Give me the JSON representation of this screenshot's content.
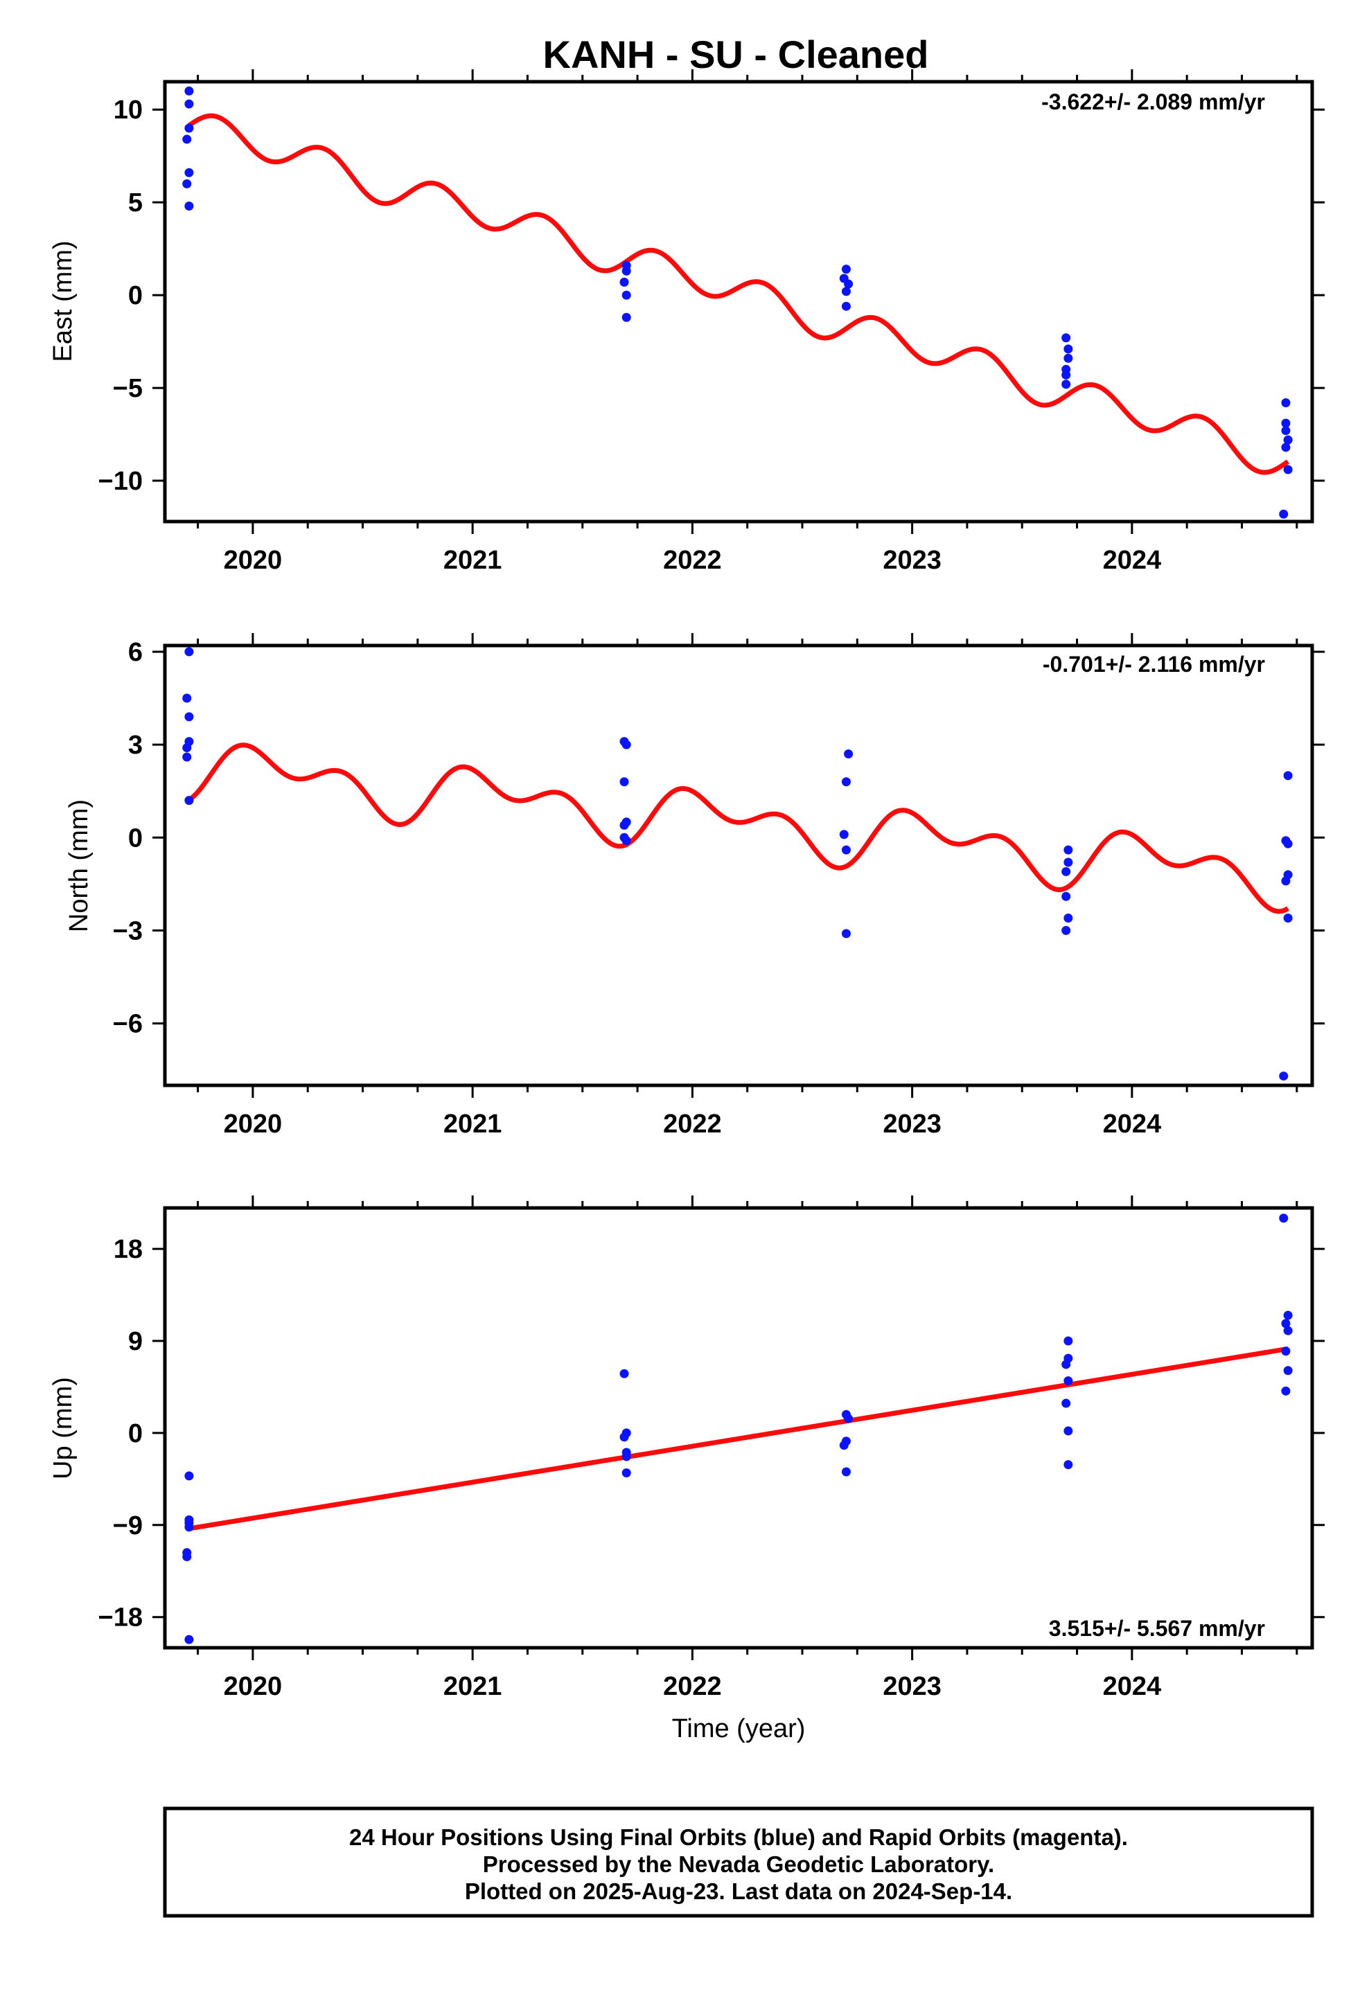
{
  "title": "KANH  - SU - Cleaned",
  "colors": {
    "data_points": "#0a14ff",
    "model_line": "#ff0a0a",
    "frame": "#000000"
  },
  "xlabel": "Time (year)",
  "footer": {
    "lines": [
      "24 Hour Positions Using Final Orbits (blue) and Rapid Orbits (magenta).",
      "Processed by the Nevada Geodetic Laboratory.",
      "Plotted on 2025-Aug-23. Last data on 2024-Sep-14."
    ]
  },
  "chart_data": [
    {
      "type": "scatter",
      "title": "",
      "ylabel": "East (mm)",
      "xlabel": "",
      "xlim": [
        2019.6,
        2024.82
      ],
      "ylim": [
        -12.2,
        11.5
      ],
      "xticks": [
        2020,
        2021,
        2022,
        2023,
        2024
      ],
      "xtick_labels": [
        "2020",
        "2021",
        "2022",
        "2023",
        "2024"
      ],
      "yticks": [
        10,
        5,
        0,
        -5,
        -10
      ],
      "ytick_labels": [
        "10",
        "5",
        "0",
        "−5",
        "−10"
      ],
      "rate": "-3.622+/- 2.089 mm/yr",
      "rate_position": "top-right",
      "grid": false,
      "points": [
        [
          2019.71,
          11.0
        ],
        [
          2019.71,
          10.3
        ],
        [
          2019.71,
          9.0
        ],
        [
          2019.7,
          8.4
        ],
        [
          2019.71,
          6.6
        ],
        [
          2019.7,
          6.0
        ],
        [
          2019.71,
          4.8
        ],
        [
          2021.7,
          1.6
        ],
        [
          2021.7,
          1.3
        ],
        [
          2021.69,
          0.7
        ],
        [
          2021.7,
          0.0
        ],
        [
          2021.7,
          -1.2
        ],
        [
          2022.7,
          1.4
        ],
        [
          2022.69,
          0.9
        ],
        [
          2022.71,
          0.6
        ],
        [
          2022.7,
          0.2
        ],
        [
          2022.7,
          -0.6
        ],
        [
          2023.7,
          -2.3
        ],
        [
          2023.71,
          -2.9
        ],
        [
          2023.71,
          -3.4
        ],
        [
          2023.7,
          -4.0
        ],
        [
          2023.7,
          -4.3
        ],
        [
          2023.7,
          -4.8
        ],
        [
          2024.7,
          -5.8
        ],
        [
          2024.7,
          -6.9
        ],
        [
          2024.7,
          -7.3
        ],
        [
          2024.71,
          -7.8
        ],
        [
          2024.7,
          -8.2
        ],
        [
          2024.71,
          -9.4
        ],
        [
          2024.69,
          -11.8
        ]
      ],
      "model": {
        "start": 2019.71,
        "end": 2024.71,
        "t0": 2022.21,
        "offset": 0.16,
        "rate": -3.622,
        "annual_cos": 0.18,
        "annual_sin": 0.12,
        "semi_cos": -0.5,
        "semi_sin": -0.72
      }
    },
    {
      "type": "scatter",
      "title": "",
      "ylabel": "North (mm)",
      "xlabel": "",
      "xlim": [
        2019.6,
        2024.82
      ],
      "ylim": [
        -8.0,
        6.2
      ],
      "xticks": [
        2020,
        2021,
        2022,
        2023,
        2024
      ],
      "xtick_labels": [
        "2020",
        "2021",
        "2022",
        "2023",
        "2024"
      ],
      "yticks": [
        6,
        3,
        0,
        -3,
        -6
      ],
      "ytick_labels": [
        "6",
        "3",
        "0",
        "−3",
        "−6"
      ],
      "rate": "-0.701+/- 2.116 mm/yr",
      "rate_position": "top-right",
      "grid": false,
      "points": [
        [
          2019.71,
          6.0
        ],
        [
          2019.7,
          4.5
        ],
        [
          2019.71,
          3.9
        ],
        [
          2019.71,
          3.1
        ],
        [
          2019.7,
          2.9
        ],
        [
          2019.7,
          2.6
        ],
        [
          2019.71,
          1.2
        ],
        [
          2021.69,
          3.1
        ],
        [
          2021.7,
          3.0
        ],
        [
          2021.69,
          1.8
        ],
        [
          2021.7,
          0.5
        ],
        [
          2021.69,
          0.4
        ],
        [
          2021.69,
          0.0
        ],
        [
          2021.7,
          -0.1
        ],
        [
          2022.71,
          2.7
        ],
        [
          2022.7,
          1.8
        ],
        [
          2022.69,
          0.1
        ],
        [
          2022.7,
          -0.4
        ],
        [
          2022.7,
          -3.1
        ],
        [
          2023.71,
          -0.4
        ],
        [
          2023.71,
          -0.8
        ],
        [
          2023.7,
          -1.1
        ],
        [
          2023.7,
          -1.9
        ],
        [
          2023.71,
          -2.6
        ],
        [
          2023.7,
          -3.0
        ],
        [
          2024.71,
          2.0
        ],
        [
          2024.7,
          -0.1
        ],
        [
          2024.71,
          -0.2
        ],
        [
          2024.71,
          -1.2
        ],
        [
          2024.7,
          -1.4
        ],
        [
          2024.71,
          -2.6
        ],
        [
          2024.69,
          -7.7
        ]
      ],
      "model": {
        "start": 2019.71,
        "end": 2024.71,
        "t0": 2022.21,
        "offset": 0.5,
        "rate": -0.701,
        "annual_cos": 0.5,
        "annual_sin": 0.4,
        "semi_cos": 0.35,
        "semi_sin": -0.45
      }
    },
    {
      "type": "scatter",
      "title": "",
      "ylabel": "Up (mm)",
      "xlabel": "Time (year)",
      "xlim": [
        2019.6,
        2024.82
      ],
      "ylim": [
        -21.0,
        22.0
      ],
      "xticks": [
        2020,
        2021,
        2022,
        2023,
        2024
      ],
      "xtick_labels": [
        "2020",
        "2021",
        "2022",
        "2023",
        "2024"
      ],
      "yticks": [
        18,
        9,
        0,
        -9,
        -18
      ],
      "ytick_labels": [
        "18",
        "9",
        "0",
        "−9",
        "−18"
      ],
      "rate": "3.515+/- 5.567 mm/yr",
      "rate_position": "bottom-right",
      "grid": false,
      "points": [
        [
          2019.71,
          -4.2
        ],
        [
          2019.71,
          -8.5
        ],
        [
          2019.71,
          -8.8
        ],
        [
          2019.71,
          -9.2
        ],
        [
          2019.7,
          -11.7
        ],
        [
          2019.7,
          -12.1
        ],
        [
          2019.71,
          -20.2
        ],
        [
          2021.69,
          5.8
        ],
        [
          2021.7,
          0.0
        ],
        [
          2021.69,
          -0.4
        ],
        [
          2021.7,
          -1.9
        ],
        [
          2021.7,
          -2.3
        ],
        [
          2021.7,
          -3.9
        ],
        [
          2022.7,
          1.8
        ],
        [
          2022.71,
          1.4
        ],
        [
          2022.7,
          -0.8
        ],
        [
          2022.69,
          -1.2
        ],
        [
          2022.7,
          -3.8
        ],
        [
          2023.71,
          9.0
        ],
        [
          2023.71,
          7.3
        ],
        [
          2023.7,
          6.7
        ],
        [
          2023.71,
          5.1
        ],
        [
          2023.7,
          2.9
        ],
        [
          2023.71,
          0.2
        ],
        [
          2023.71,
          -3.1
        ],
        [
          2024.69,
          21.0
        ],
        [
          2024.71,
          11.5
        ],
        [
          2024.7,
          10.7
        ],
        [
          2024.71,
          10.0
        ],
        [
          2024.7,
          8.0
        ],
        [
          2024.71,
          6.1
        ],
        [
          2024.7,
          4.1
        ]
      ],
      "model": {
        "start": 2019.71,
        "end": 2024.71,
        "t0": 2022.21,
        "offset": -0.56,
        "rate": 3.515,
        "annual_cos": 0,
        "annual_sin": 0,
        "semi_cos": 0,
        "semi_sin": 0
      }
    }
  ]
}
